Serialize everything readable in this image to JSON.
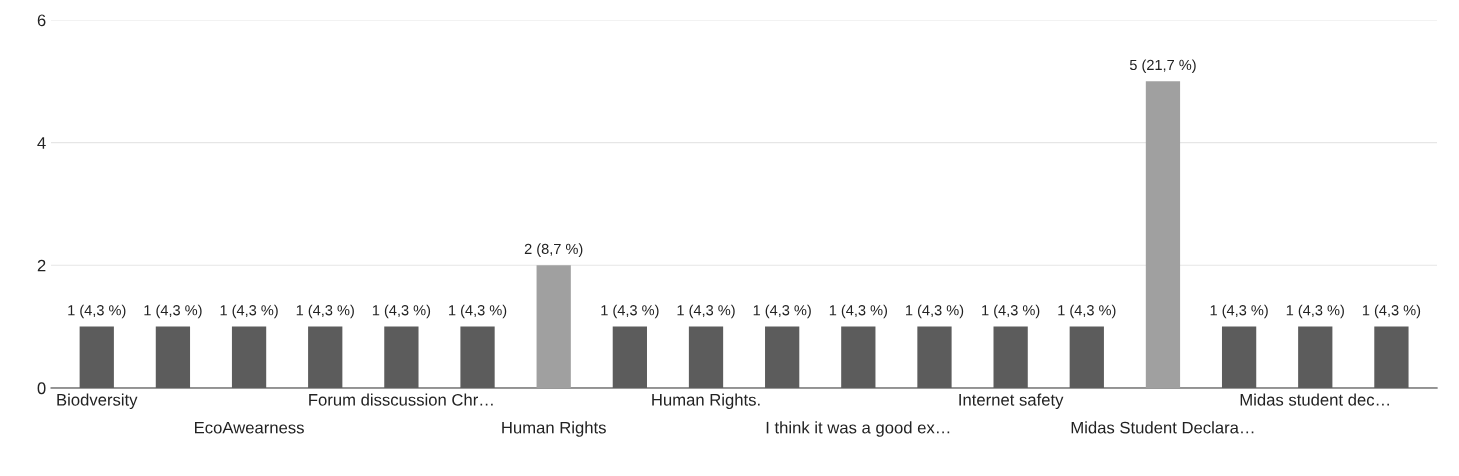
{
  "chart_data": {
    "type": "bar",
    "categories": [
      "Biodversity",
      null,
      "EcoAwearness",
      null,
      "Forum disscussion Chr…",
      null,
      "Human Rights",
      null,
      "Human Rights.",
      null,
      "I think it was a good ex…",
      null,
      "Internet safety",
      null,
      "Midas Student Declara…",
      null,
      "Midas student dec…",
      null
    ],
    "values": [
      1,
      1,
      1,
      1,
      1,
      1,
      2,
      1,
      1,
      1,
      1,
      1,
      1,
      1,
      5,
      1,
      1,
      1
    ],
    "value_labels": [
      "1 (4,3 %)",
      "1 (4,3 %)",
      "1 (4,3 %)",
      "1 (4,3 %)",
      "1 (4,3 %)",
      "1 (4,3 %)",
      "2 (8,7 %)",
      "1 (4,3 %)",
      "1 (4,3 %)",
      "1 (4,3 %)",
      "1 (4,3 %)",
      "1 (4,3 %)",
      "1 (4,3 %)",
      "1 (4,3 %)",
      "5 (21,7 %)",
      "1 (4,3 %)",
      "1 (4,3 %)",
      "1 (4,3 %)"
    ],
    "colors": [
      "#5c5c5c",
      "#5c5c5c",
      "#5c5c5c",
      "#5c5c5c",
      "#5c5c5c",
      "#5c5c5c",
      "#a0a0a0",
      "#5c5c5c",
      "#5c5c5c",
      "#5c5c5c",
      "#5c5c5c",
      "#5c5c5c",
      "#5c5c5c",
      "#5c5c5c",
      "#a0a0a0",
      "#5c5c5c",
      "#5c5c5c",
      "#5c5c5c"
    ],
    "ylim": [
      0,
      6
    ],
    "yticks": [
      0,
      2,
      4,
      6
    ],
    "grid": "y"
  }
}
